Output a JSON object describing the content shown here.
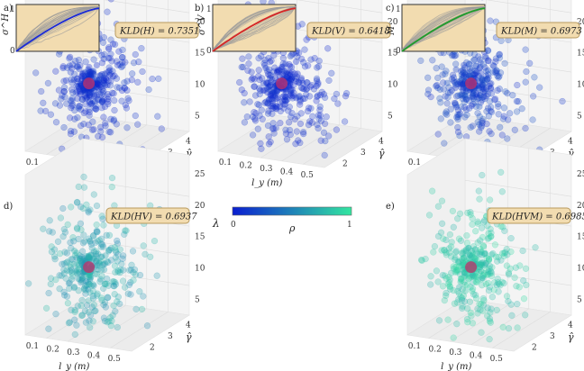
{
  "panel_labels": [
    "a)",
    "b)",
    "c)",
    "d)",
    "e)"
  ],
  "kld": [
    "KLD(H) = 0.7351",
    "KLD(V) = 0.6418",
    "KLD(M) = 0.6973",
    "KLD(HV) = 0.6937",
    "KLD(HVM) = 0.6985"
  ],
  "inset_ylabels": [
    "σ^H",
    "σ^V",
    "M"
  ],
  "inset_tick_zero": "0",
  "inset_tick_one": "1",
  "colorbar": {
    "label": "ρ",
    "min_label": "0",
    "max_label": "1",
    "low_color": "#0a1ed0",
    "high_color": "#33e6a0"
  },
  "axis_labels": {
    "x": "l_y (m)",
    "y": "γ̂",
    "z": "λ"
  },
  "x_ticks": [
    "0.1",
    "0.2",
    "0.3",
    "0.4",
    "0.5"
  ],
  "y_ticks": [
    "2",
    "3",
    "4"
  ],
  "z_ticks": [
    "5",
    "10",
    "15",
    "20",
    "25"
  ],
  "colors": {
    "inset_bg": "#f2dcb0",
    "box_bg": "#f2dcb0",
    "box_border": "#b89a5e",
    "mean_marker": "#c0306a",
    "inset_highlight_a": "#1a2bd6",
    "inset_highlight_b": "#d62626",
    "inset_highlight_c": "#1e9c2a"
  },
  "chart_data": [
    {
      "type": "scatter",
      "panel": "a)",
      "x_range": [
        0.05,
        0.55
      ],
      "y_range": [
        1,
        5
      ],
      "z_range": [
        0,
        27
      ],
      "x_values": [
        0.1,
        0.2,
        0.3,
        0.4,
        0.5
      ],
      "z_values": [
        5,
        10,
        15,
        20,
        25
      ],
      "kld_value": 0.7351
    },
    {
      "type": "scatter",
      "panel": "b)",
      "x_range": [
        0.05,
        0.55
      ],
      "y_range": [
        1,
        5
      ],
      "z_range": [
        0,
        27
      ],
      "x_values": [
        0.1,
        0.2,
        0.3,
        0.4,
        0.5
      ],
      "z_values": [
        5,
        10,
        15,
        20,
        25
      ],
      "kld_value": 0.6418
    },
    {
      "type": "scatter",
      "panel": "c)",
      "x_range": [
        0.05,
        0.55
      ],
      "y_range": [
        1,
        5
      ],
      "z_range": [
        0,
        27
      ],
      "x_values": [
        0.1,
        0.2,
        0.3,
        0.4,
        0.5
      ],
      "z_values": [
        5,
        10,
        15,
        20,
        25
      ],
      "kld_value": 0.6973
    },
    {
      "type": "scatter",
      "panel": "d)",
      "x_range": [
        0.05,
        0.55
      ],
      "y_range": [
        1,
        5
      ],
      "z_range": [
        0,
        27
      ],
      "x_values": [
        0.1,
        0.2,
        0.3,
        0.4,
        0.5
      ],
      "z_values": [
        5,
        10,
        15,
        20,
        25
      ],
      "kld_value": 0.6937
    },
    {
      "type": "scatter",
      "panel": "e)",
      "x_range": [
        0.05,
        0.55
      ],
      "y_range": [
        1,
        5
      ],
      "z_range": [
        0,
        27
      ],
      "x_values": [
        0.1,
        0.2,
        0.3,
        0.4,
        0.5
      ],
      "z_values": [
        5,
        10,
        15,
        20,
        25
      ],
      "kld_value": 0.6985
    }
  ]
}
